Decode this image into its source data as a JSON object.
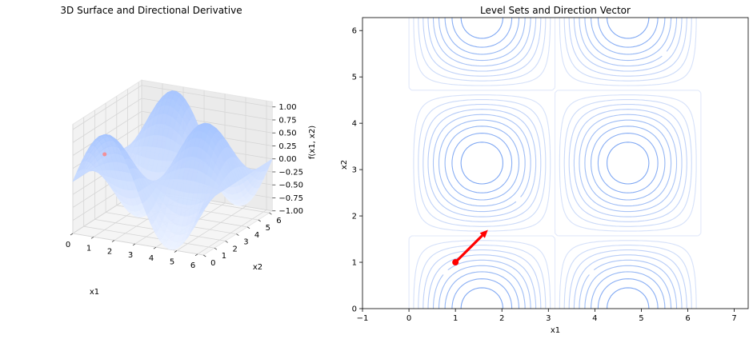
{
  "chart_data": [
    {
      "type": "surface",
      "title": "3D Surface and Directional Derivative",
      "xlabel": "x1",
      "ylabel": "x2",
      "zlabel": "f(x1, x2)",
      "function": "sin(x1)*cos(x2)",
      "xlim": [
        0,
        6.28
      ],
      "ylim": [
        0,
        6.28
      ],
      "zlim": [
        -1,
        1
      ],
      "xticks": [
        "0",
        "1",
        "2",
        "3",
        "4",
        "5",
        "6"
      ],
      "yticks": [
        "0",
        "1",
        "2",
        "3",
        "4",
        "5",
        "6"
      ],
      "zticks": [
        "−1.00",
        "−0.75",
        "−0.50",
        "−0.25",
        "0.00",
        "0.25",
        "0.50",
        "0.75",
        "1.00"
      ],
      "point": {
        "x1": 1,
        "x2": 1
      },
      "colormap": "coolwarm",
      "grid": true
    },
    {
      "type": "contour",
      "title": "Level Sets and Direction Vector",
      "xlabel": "x1",
      "ylabel": "x2",
      "function": "sin(x1)*cos(x2)",
      "xlim": [
        -1,
        7.3
      ],
      "ylim": [
        0,
        6.28
      ],
      "xticks": [
        "−1",
        "0",
        "1",
        "2",
        "3",
        "4",
        "5",
        "6",
        "7"
      ],
      "yticks": [
        "0",
        "1",
        "2",
        "3",
        "4",
        "5",
        "6"
      ],
      "point": {
        "x1": 1,
        "x2": 1
      },
      "direction": {
        "dx1": 0.7,
        "dx2": 0.7
      },
      "point_color": "#ff0000",
      "contour_color": "#3b6fe0"
    }
  ]
}
